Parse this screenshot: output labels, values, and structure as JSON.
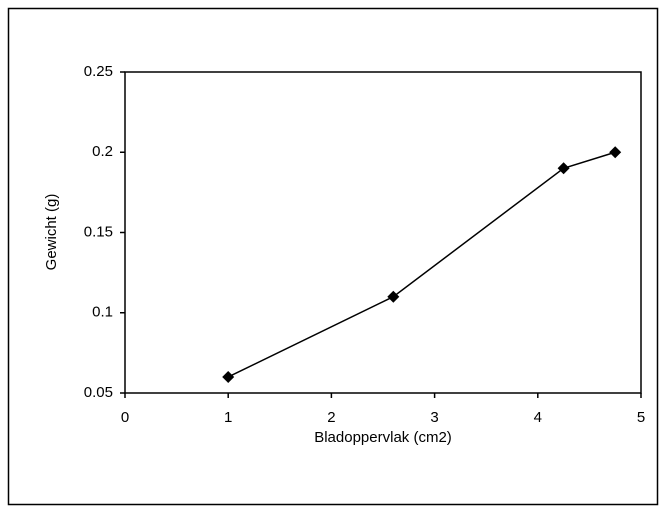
{
  "chart_data": {
    "type": "line",
    "x_label": "Bladoppervlak (cm2)",
    "y_label": "Gewicht (g)",
    "series": [
      {
        "name": null,
        "color": "#000000",
        "marker": "diamond",
        "x": [
          1,
          2.6,
          4.25,
          4.75
        ],
        "values": [
          0.06,
          0.11,
          0.19,
          0.2
        ]
      }
    ],
    "xlim": [
      0,
      5
    ],
    "xticks": [
      0,
      1,
      2,
      3,
      4,
      5
    ],
    "ylim": [
      0.05,
      0.25
    ],
    "yticks": [
      0.05,
      0.1,
      0.15,
      0.2,
      0.25
    ],
    "grid": false
  }
}
